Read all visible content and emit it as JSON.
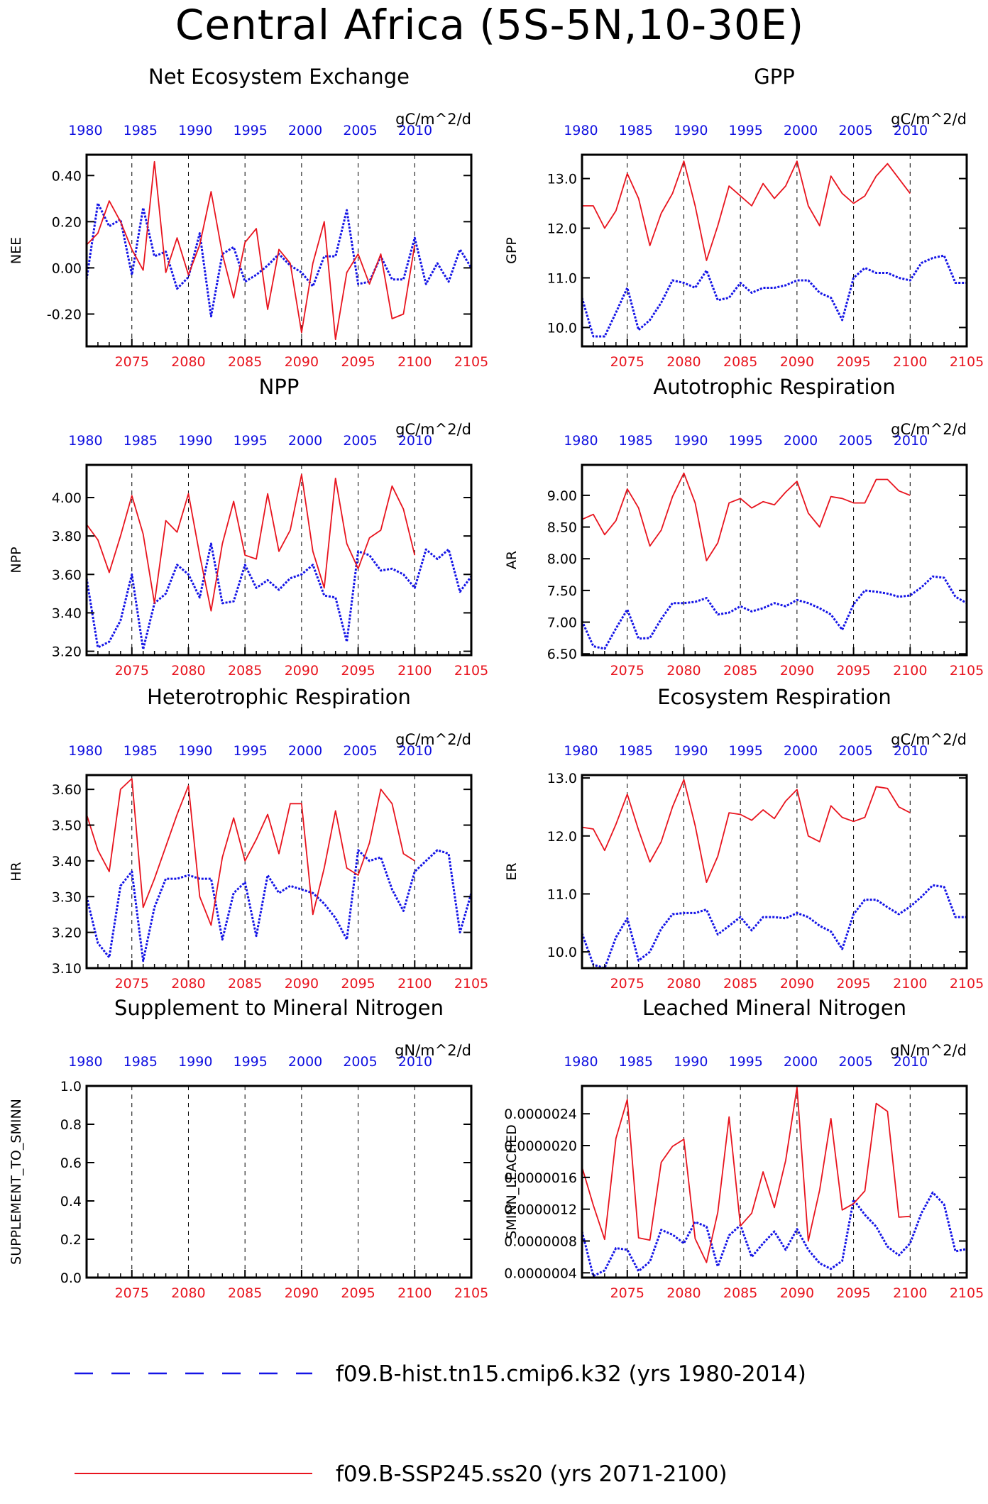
{
  "title": "Central Africa (5S-5N,10-30E)",
  "colors": {
    "hist": "#1414e6",
    "ssp": "#e8141e",
    "axis": "#000000"
  },
  "legend": [
    {
      "label": "f09.B-hist.tn15.cmip6.k32 (yrs 1980-2014)",
      "color": "#1414e6",
      "style": "dashed"
    },
    {
      "label": "f09.B-SSP245.ss20 (yrs 2071-2100)",
      "color": "#e8141e",
      "style": "solid"
    }
  ],
  "chart_data": [
    {
      "type": "line",
      "title": "Net Ecosystem Exchange",
      "units": "gC/m^2/d",
      "ylabel": "NEE",
      "ylim": [
        -0.34,
        0.49
      ],
      "yticks": [
        -0.2,
        0.0,
        0.2,
        0.4
      ],
      "ytick_labels": [
        "-0.20",
        "0.00",
        "0.20",
        "0.40"
      ],
      "xlim": [
        2071,
        2105
      ],
      "xticks": [
        2075,
        2080,
        2085,
        2090,
        2095,
        2100,
        2105
      ],
      "xticks_top": [
        "1980",
        "1985",
        "1990",
        "1995",
        "2000",
        "2005",
        "2010"
      ],
      "series": [
        {
          "name": "f09.B-hist.tn15.cmip6.k32 (yrs 1980-2014)",
          "x_start": 2071,
          "values": [
            -0.05,
            0.28,
            0.18,
            0.21,
            -0.03,
            0.26,
            0.05,
            0.07,
            -0.09,
            -0.04,
            0.15,
            -0.21,
            0.06,
            0.09,
            -0.06,
            -0.03,
            0.01,
            0.06,
            0.01,
            -0.02,
            -0.08,
            0.05,
            0.05,
            0.25,
            -0.07,
            -0.06,
            0.05,
            -0.05,
            -0.05,
            0.13,
            -0.07,
            0.02,
            -0.06,
            0.08,
            0.0
          ]
        },
        {
          "name": "f09.B-SSP245.ss20 (yrs 2071-2100)",
          "x_start": 2071,
          "values": [
            0.1,
            0.15,
            0.29,
            0.2,
            0.08,
            -0.01,
            0.46,
            -0.02,
            0.13,
            -0.03,
            0.1,
            0.33,
            0.06,
            -0.13,
            0.11,
            0.17,
            -0.18,
            0.08,
            0.02,
            -0.28,
            0.02,
            0.2,
            -0.31,
            -0.02,
            0.06,
            -0.07,
            0.06,
            -0.22,
            -0.2,
            0.1
          ]
        }
      ]
    },
    {
      "type": "line",
      "title": "GPP",
      "units": "gC/m^2/d",
      "ylabel": "GPP",
      "ylim": [
        9.62,
        13.48
      ],
      "yticks": [
        10.0,
        11.0,
        12.0,
        13.0
      ],
      "ytick_labels": [
        "10.0",
        "11.0",
        "12.0",
        "13.0"
      ],
      "xlim": [
        2071,
        2105
      ],
      "xticks": [
        2075,
        2080,
        2085,
        2090,
        2095,
        2100,
        2105
      ],
      "xticks_top": [
        "1980",
        "1985",
        "1990",
        "1995",
        "2000",
        "2005",
        "2010"
      ],
      "series": [
        {
          "name": "f09.B-hist.tn15.cmip6.k32 (yrs 1980-2014)",
          "x_start": 2071,
          "values": [
            10.6,
            9.82,
            9.82,
            10.3,
            10.8,
            9.95,
            10.15,
            10.5,
            10.95,
            10.9,
            10.8,
            11.15,
            10.55,
            10.6,
            10.9,
            10.7,
            10.8,
            10.8,
            10.85,
            10.95,
            10.95,
            10.7,
            10.6,
            10.15,
            11.0,
            11.2,
            11.1,
            11.1,
            11.0,
            10.95,
            11.3,
            11.4,
            11.45,
            10.9,
            10.9
          ]
        },
        {
          "name": "f09.B-SSP245.ss20 (yrs 2071-2100)",
          "x_start": 2071,
          "values": [
            12.45,
            12.45,
            12.0,
            12.35,
            13.1,
            12.6,
            11.65,
            12.3,
            12.7,
            13.35,
            12.45,
            11.35,
            12.05,
            12.85,
            12.65,
            12.45,
            12.9,
            12.6,
            12.85,
            13.35,
            12.45,
            12.05,
            13.05,
            12.7,
            12.5,
            12.65,
            13.05,
            13.3,
            13.0,
            12.7
          ]
        }
      ]
    },
    {
      "type": "line",
      "title": "NPP",
      "units": "gC/m^2/d",
      "ylabel": "NPP",
      "ylim": [
        3.18,
        4.17
      ],
      "yticks": [
        3.2,
        3.4,
        3.6,
        3.8,
        4.0
      ],
      "ytick_labels": [
        "3.20",
        "3.40",
        "3.60",
        "3.80",
        "4.00"
      ],
      "xlim": [
        2071,
        2105
      ],
      "xticks": [
        2075,
        2080,
        2085,
        2090,
        2095,
        2100,
        2105
      ],
      "xticks_top": [
        "1980",
        "1985",
        "1990",
        "1995",
        "2000",
        "2005",
        "2010"
      ],
      "series": [
        {
          "name": "f09.B-hist.tn15.cmip6.k32 (yrs 1980-2014)",
          "x_start": 2071,
          "values": [
            3.58,
            3.22,
            3.25,
            3.36,
            3.6,
            3.21,
            3.45,
            3.5,
            3.65,
            3.6,
            3.48,
            3.76,
            3.45,
            3.46,
            3.65,
            3.53,
            3.57,
            3.52,
            3.58,
            3.6,
            3.65,
            3.49,
            3.48,
            3.25,
            3.72,
            3.7,
            3.62,
            3.63,
            3.6,
            3.53,
            3.73,
            3.68,
            3.73,
            3.51,
            3.59
          ]
        },
        {
          "name": "f09.B-SSP245.ss20 (yrs 2071-2100)",
          "x_start": 2071,
          "values": [
            3.86,
            3.78,
            3.61,
            3.8,
            4.01,
            3.81,
            3.45,
            3.88,
            3.82,
            4.02,
            3.7,
            3.41,
            3.76,
            3.98,
            3.7,
            3.68,
            4.02,
            3.72,
            3.83,
            4.12,
            3.72,
            3.53,
            4.1,
            3.76,
            3.63,
            3.79,
            3.83,
            4.06,
            3.94,
            3.7
          ]
        }
      ]
    },
    {
      "type": "line",
      "title": "Autotrophic Respiration",
      "units": "gC/m^2/d",
      "ylabel": "AR",
      "ylim": [
        6.48,
        9.48
      ],
      "yticks": [
        6.5,
        7.0,
        7.5,
        8.0,
        8.5,
        9.0
      ],
      "ytick_labels": [
        "6.50",
        "7.00",
        "7.50",
        "8.00",
        "8.50",
        "9.00"
      ],
      "xlim": [
        2071,
        2105
      ],
      "xticks": [
        2075,
        2080,
        2085,
        2090,
        2095,
        2100,
        2105
      ],
      "xticks_top": [
        "1980",
        "1985",
        "1990",
        "1995",
        "2000",
        "2005",
        "2010"
      ],
      "series": [
        {
          "name": "f09.B-hist.tn15.cmip6.k32 (yrs 1980-2014)",
          "x_start": 2071,
          "values": [
            7.02,
            6.62,
            6.58,
            6.9,
            7.2,
            6.74,
            6.75,
            7.05,
            7.3,
            7.3,
            7.32,
            7.38,
            7.12,
            7.15,
            7.25,
            7.17,
            7.22,
            7.3,
            7.25,
            7.35,
            7.3,
            7.22,
            7.12,
            6.88,
            7.28,
            7.5,
            7.48,
            7.45,
            7.4,
            7.42,
            7.55,
            7.72,
            7.7,
            7.4,
            7.3
          ]
        },
        {
          "name": "f09.B-SSP245.ss20 (yrs 2071-2100)",
          "x_start": 2071,
          "values": [
            8.62,
            8.7,
            8.38,
            8.6,
            9.1,
            8.8,
            8.2,
            8.45,
            8.98,
            9.35,
            8.88,
            7.97,
            8.25,
            8.88,
            8.95,
            8.8,
            8.9,
            8.85,
            9.05,
            9.22,
            8.72,
            8.5,
            8.98,
            8.95,
            8.88,
            8.88,
            9.25,
            9.25,
            9.07,
            9.0
          ]
        }
      ]
    },
    {
      "type": "line",
      "title": "Heterotrophic Respiration",
      "units": "gC/m^2/d",
      "ylabel": "HR",
      "ylim": [
        3.1,
        3.64
      ],
      "yticks": [
        3.1,
        3.2,
        3.3,
        3.4,
        3.5,
        3.6
      ],
      "ytick_labels": [
        "3.10",
        "3.20",
        "3.30",
        "3.40",
        "3.50",
        "3.60"
      ],
      "xlim": [
        2071,
        2105
      ],
      "xticks": [
        2075,
        2080,
        2085,
        2090,
        2095,
        2100,
        2105
      ],
      "xticks_top": [
        "1980",
        "1985",
        "1990",
        "1995",
        "2000",
        "2005",
        "2010"
      ],
      "series": [
        {
          "name": "f09.B-hist.tn15.cmip6.k32 (yrs 1980-2014)",
          "x_start": 2071,
          "values": [
            3.3,
            3.17,
            3.13,
            3.33,
            3.37,
            3.12,
            3.27,
            3.35,
            3.35,
            3.36,
            3.35,
            3.35,
            3.18,
            3.31,
            3.34,
            3.19,
            3.36,
            3.31,
            3.33,
            3.32,
            3.31,
            3.28,
            3.24,
            3.18,
            3.43,
            3.4,
            3.41,
            3.32,
            3.26,
            3.37,
            3.4,
            3.43,
            3.42,
            3.2,
            3.31
          ]
        },
        {
          "name": "f09.B-SSP245.ss20 (yrs 2071-2100)",
          "x_start": 2071,
          "values": [
            3.53,
            3.43,
            3.37,
            3.6,
            3.63,
            3.27,
            3.35,
            3.44,
            3.53,
            3.61,
            3.3,
            3.22,
            3.41,
            3.52,
            3.4,
            3.46,
            3.53,
            3.42,
            3.56,
            3.56,
            3.25,
            3.38,
            3.54,
            3.38,
            3.36,
            3.45,
            3.6,
            3.56,
            3.42,
            3.4
          ]
        }
      ]
    },
    {
      "type": "line",
      "title": "Ecosystem Respiration",
      "units": "gC/m^2/d",
      "ylabel": "ER",
      "ylim": [
        9.72,
        13.05
      ],
      "yticks": [
        10.0,
        11.0,
        12.0,
        13.0
      ],
      "ytick_labels": [
        "10.0",
        "11.0",
        "12.0",
        "13.0"
      ],
      "xlim": [
        2071,
        2105
      ],
      "xticks": [
        2075,
        2080,
        2085,
        2090,
        2095,
        2100,
        2105
      ],
      "xticks_top": [
        "1980",
        "1985",
        "1990",
        "1995",
        "2000",
        "2005",
        "2010"
      ],
      "series": [
        {
          "name": "f09.B-hist.tn15.cmip6.k32 (yrs 1980-2014)",
          "x_start": 2071,
          "values": [
            10.32,
            9.78,
            9.72,
            10.25,
            10.58,
            9.85,
            10.0,
            10.4,
            10.65,
            10.67,
            10.67,
            10.73,
            10.3,
            10.45,
            10.6,
            10.37,
            10.6,
            10.6,
            10.58,
            10.67,
            10.6,
            10.45,
            10.35,
            10.05,
            10.65,
            10.9,
            10.9,
            10.77,
            10.65,
            10.78,
            10.95,
            11.15,
            11.12,
            10.6,
            10.6
          ]
        },
        {
          "name": "f09.B-SSP245.ss20 (yrs 2071-2100)",
          "x_start": 2071,
          "values": [
            12.15,
            12.12,
            11.75,
            12.2,
            12.72,
            12.1,
            11.55,
            11.9,
            12.5,
            12.97,
            12.18,
            11.2,
            11.65,
            12.4,
            12.37,
            12.27,
            12.45,
            12.3,
            12.6,
            12.8,
            12.0,
            11.9,
            12.52,
            12.32,
            12.25,
            12.32,
            12.85,
            12.82,
            12.5,
            12.4
          ]
        }
      ]
    },
    {
      "type": "line",
      "title": "Supplement to Mineral Nitrogen",
      "units": "gN/m^2/d",
      "ylabel": "SUPPLEMENT_TO_SMINN",
      "ylim": [
        0.0,
        1.0
      ],
      "yticks": [
        0.0,
        0.2,
        0.4,
        0.6,
        0.8,
        1.0
      ],
      "ytick_labels": [
        "0.0",
        "0.2",
        "0.4",
        "0.6",
        "0.8",
        "1.0"
      ],
      "xlim": [
        2071,
        2105
      ],
      "xticks": [
        2075,
        2080,
        2085,
        2090,
        2095,
        2100,
        2105
      ],
      "xticks_top": [
        "1980",
        "1985",
        "1990",
        "1995",
        "2000",
        "2005",
        "2010"
      ],
      "series": []
    },
    {
      "type": "line",
      "title": "Leached Mineral Nitrogen",
      "units": "gN/m^2/d",
      "ylabel": "SMINN_LEACHED",
      "ylim": [
        3.4e-07,
        2.75e-06
      ],
      "yticks": [
        4e-07,
        8e-07,
        1.2e-06,
        1.6e-06,
        2e-06,
        2.4e-06
      ],
      "ytick_labels": [
        "0.0000004",
        "0.0000008",
        "0.0000012",
        "0.0000016",
        "0.0000020",
        "0.0000024"
      ],
      "xlim": [
        2071,
        2105
      ],
      "xticks": [
        2075,
        2080,
        2085,
        2090,
        2095,
        2100,
        2105
      ],
      "xticks_top": [
        "1980",
        "1985",
        "1990",
        "1995",
        "2000",
        "2005",
        "2010"
      ],
      "series": [
        {
          "name": "f09.B-hist.tn15.cmip6.k32 (yrs 1980-2014)",
          "x_start": 2071,
          "values": [
            9.2e-07,
            3.6e-07,
            4.3e-07,
            7.1e-07,
            6.9e-07,
            4.2e-07,
            5.4e-07,
            9.4e-07,
            8.8e-07,
            7.7e-07,
            1.04e-06,
            9.8e-07,
            4.8e-07,
            8.7e-07,
            1e-06,
            6e-07,
            7.7e-07,
            9.2e-07,
            6.9e-07,
            9.5e-07,
            6.9e-07,
            5.2e-07,
            4.5e-07,
            5.5e-07,
            1.32e-06,
            1.13e-06,
            9.8e-07,
            7.3e-07,
            6.2e-07,
            7.7e-07,
            1.15e-06,
            1.41e-06,
            1.26e-06,
            6.7e-07,
            7e-07
          ]
        },
        {
          "name": "f09.B-SSP245.ss20 (yrs 2071-2100)",
          "x_start": 2071,
          "values": [
            1.73e-06,
            1.25e-06,
            8.2e-07,
            2.09e-06,
            2.58e-06,
            8.4e-07,
            8.1e-07,
            1.79e-06,
            1.99e-06,
            2.08e-06,
            8.3e-07,
            5.3e-07,
            1.16e-06,
            2.36e-06,
            9.9e-07,
            1.15e-06,
            1.67e-06,
            1.22e-06,
            1.81e-06,
            2.73e-06,
            8e-07,
            1.44e-06,
            2.34e-06,
            1.19e-06,
            1.27e-06,
            1.43e-06,
            2.53e-06,
            2.43e-06,
            1.1e-06,
            1.11e-06
          ]
        }
      ]
    }
  ]
}
